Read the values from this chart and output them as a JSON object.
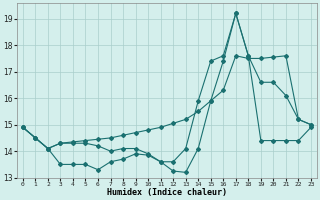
{
  "xlabel": "Humidex (Indice chaleur)",
  "xlim": [
    -0.5,
    23.5
  ],
  "ylim": [
    13.0,
    19.6
  ],
  "yticks": [
    13,
    14,
    15,
    16,
    17,
    18,
    19
  ],
  "xticks": [
    0,
    1,
    2,
    3,
    4,
    5,
    6,
    7,
    8,
    9,
    10,
    11,
    12,
    13,
    14,
    15,
    16,
    17,
    18,
    19,
    20,
    21,
    22,
    23
  ],
  "bg_color": "#d4efec",
  "grid_color": "#aacfcc",
  "line_color": "#1a7070",
  "line1_y": [
    14.9,
    14.5,
    14.1,
    14.3,
    14.3,
    14.3,
    14.2,
    14.0,
    14.1,
    14.1,
    13.9,
    13.6,
    13.6,
    14.1,
    15.9,
    17.4,
    17.6,
    19.2,
    17.6,
    16.6,
    16.6,
    16.1,
    15.2,
    15.0
  ],
  "line2_y": [
    14.9,
    14.5,
    14.1,
    13.5,
    13.5,
    13.5,
    13.3,
    13.6,
    13.7,
    13.9,
    13.85,
    13.6,
    13.25,
    13.2,
    14.1,
    15.9,
    17.4,
    19.2,
    17.6,
    14.4,
    14.4,
    14.4,
    14.4,
    14.9
  ],
  "line3_y": [
    14.9,
    14.5,
    14.1,
    14.3,
    14.35,
    14.4,
    14.45,
    14.5,
    14.6,
    14.7,
    14.8,
    14.9,
    15.05,
    15.2,
    15.5,
    15.9,
    16.3,
    17.6,
    17.5,
    17.5,
    17.55,
    17.6,
    15.2,
    15.0
  ]
}
